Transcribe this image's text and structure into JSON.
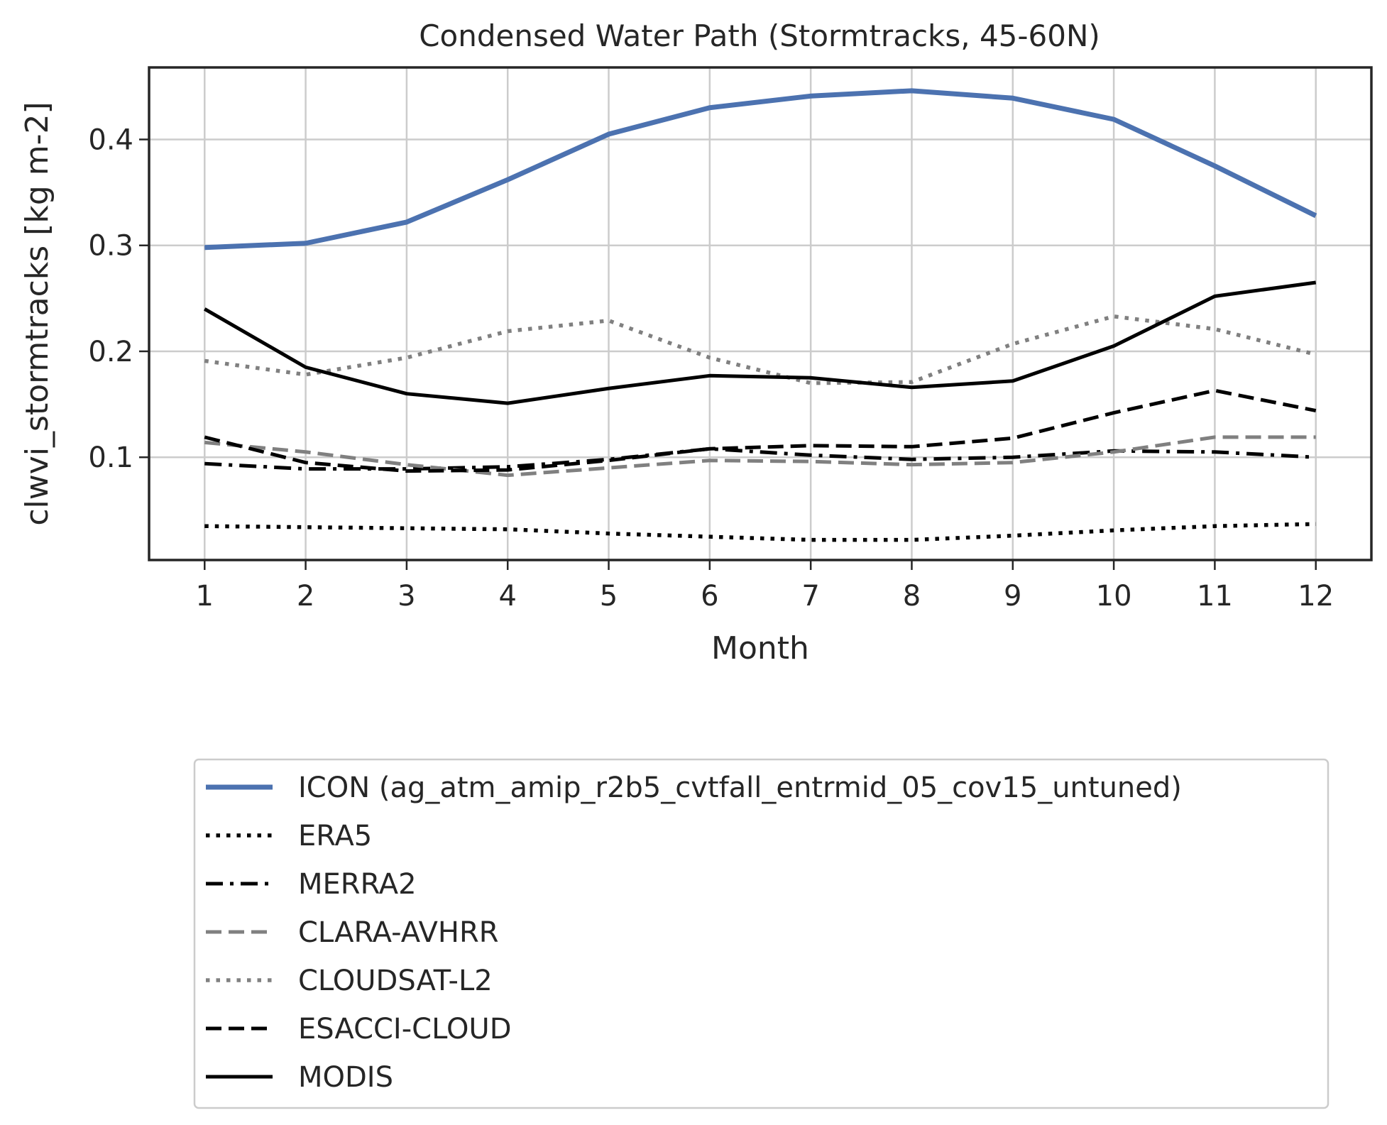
{
  "chart_data": {
    "type": "line",
    "title": "Condensed Water Path (Stormtracks, 45-60N)",
    "xlabel": "Month",
    "ylabel": "clwvi_stormtracks [kg m-2]",
    "x": [
      1,
      2,
      3,
      4,
      5,
      6,
      7,
      8,
      9,
      10,
      11,
      12
    ],
    "xlim": [
      0.45,
      12.55
    ],
    "ylim": [
      0.003,
      0.468
    ],
    "yticks": [
      0.1,
      0.2,
      0.3,
      0.4
    ],
    "ytick_labels": [
      "0.1",
      "0.2",
      "0.3",
      "0.4"
    ],
    "grid": true,
    "legend_position": "below",
    "series": [
      {
        "name": "ICON (ag_atm_amip_r2b5_cvtfall_entrmid_05_cov15_untuned)",
        "color": "#4c72b0",
        "style": "solid-thick",
        "values": [
          0.298,
          0.302,
          0.322,
          0.362,
          0.405,
          0.43,
          0.441,
          0.446,
          0.439,
          0.419,
          0.375,
          0.328
        ]
      },
      {
        "name": "ERA5",
        "color": "#000000",
        "style": "dotted",
        "values": [
          0.035,
          0.034,
          0.033,
          0.032,
          0.028,
          0.025,
          0.022,
          0.022,
          0.026,
          0.031,
          0.035,
          0.037
        ]
      },
      {
        "name": "MERRA2",
        "color": "#000000",
        "style": "dashdot",
        "values": [
          0.094,
          0.089,
          0.089,
          0.091,
          0.098,
          0.108,
          0.102,
          0.098,
          0.1,
          0.106,
          0.105,
          0.1
        ]
      },
      {
        "name": "CLARA-AVHRR",
        "color": "#808080",
        "style": "dashed",
        "values": [
          0.114,
          0.105,
          0.093,
          0.083,
          0.09,
          0.097,
          0.096,
          0.093,
          0.095,
          0.105,
          0.119,
          0.119
        ]
      },
      {
        "name": "CLOUDSAT-L2",
        "color": "#808080",
        "style": "dotted",
        "values": [
          0.191,
          0.178,
          0.194,
          0.219,
          0.229,
          0.194,
          0.17,
          0.171,
          0.207,
          0.233,
          0.221,
          0.197
        ]
      },
      {
        "name": "ESACCI-CLOUD",
        "color": "#000000",
        "style": "dashed",
        "values": [
          0.119,
          0.095,
          0.087,
          0.088,
          0.097,
          0.108,
          0.111,
          0.11,
          0.118,
          0.142,
          0.163,
          0.144
        ]
      },
      {
        "name": "MODIS",
        "color": "#000000",
        "style": "solid",
        "values": [
          0.24,
          0.185,
          0.16,
          0.151,
          0.165,
          0.177,
          0.175,
          0.166,
          0.172,
          0.205,
          0.252,
          0.265
        ]
      }
    ]
  }
}
